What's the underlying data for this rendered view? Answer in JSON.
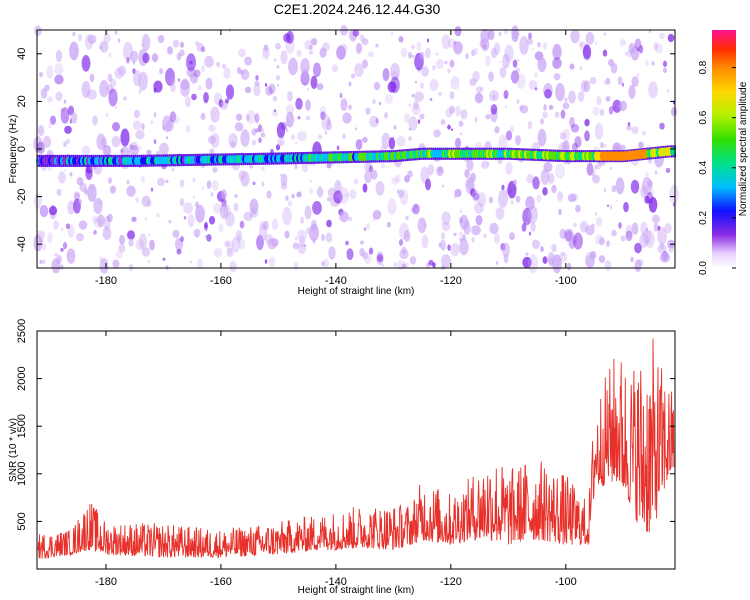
{
  "chart_data": [
    {
      "type": "heatmap",
      "title": "C2E1.2024.246.12.44.G30",
      "xlabel": "Height of straight line (km)",
      "ylabel": "Frequency (Hz)",
      "xlim": [
        -192,
        -81
      ],
      "ylim": [
        -50,
        50
      ],
      "x_ticks": [
        -180,
        -160,
        -140,
        -120,
        -100
      ],
      "y_ticks": [
        -40,
        -20,
        0,
        20,
        40
      ],
      "colorbar": {
        "label": "Normalized spectral amplitude",
        "range": [
          0.0,
          0.95
        ],
        "ticks": [
          0.0,
          0.2,
          0.4,
          0.6,
          0.8
        ]
      },
      "ridge": {
        "description_values": "dominant frequency band near 0 Hz",
        "points": [
          [
            -192,
            -5
          ],
          [
            -175,
            -5
          ],
          [
            -150,
            -4
          ],
          [
            -130,
            -3
          ],
          [
            -125,
            -2
          ],
          [
            -110,
            -2
          ],
          [
            -100,
            -3
          ],
          [
            -90,
            -3
          ],
          [
            -82,
            -1
          ]
        ],
        "peak_amplitude_x": -90
      }
    },
    {
      "type": "line",
      "xlabel": "Height of straight line (km)",
      "ylabel": "SNR (10 * v/v)",
      "xlim": [
        -192,
        -81
      ],
      "ylim": [
        0,
        2500
      ],
      "x_ticks": [
        -180,
        -160,
        -140,
        -120,
        -100
      ],
      "y_ticks": [
        500,
        1000,
        1500,
        2000,
        2500
      ],
      "series": [
        {
          "color": "#e8302a",
          "envelope": [
            [
              -192,
              100,
              380
            ],
            [
              -186,
              150,
              420
            ],
            [
              -183,
              200,
              750
            ],
            [
              -180,
              150,
              500
            ],
            [
              -170,
              120,
              480
            ],
            [
              -160,
              120,
              420
            ],
            [
              -150,
              150,
              500
            ],
            [
              -143,
              200,
              580
            ],
            [
              -140,
              200,
              620
            ],
            [
              -135,
              220,
              680
            ],
            [
              -130,
              200,
              680
            ],
            [
              -127,
              250,
              700
            ],
            [
              -125,
              300,
              950
            ],
            [
              -120,
              250,
              800
            ],
            [
              -117,
              300,
              950
            ],
            [
              -113,
              300,
              1250
            ],
            [
              -110,
              250,
              1050
            ],
            [
              -107,
              300,
              1150
            ],
            [
              -104,
              300,
              1150
            ],
            [
              -100,
              250,
              1000
            ],
            [
              -96,
              250,
              700
            ],
            [
              -95,
              800,
              1800
            ],
            [
              -93,
              900,
              2050
            ],
            [
              -91,
              900,
              2350
            ],
            [
              -89,
              700,
              2150
            ],
            [
              -87,
              400,
              2300
            ],
            [
              -85,
              350,
              2450
            ],
            [
              -83,
              800,
              2100
            ],
            [
              -81.5,
              1000,
              1900
            ]
          ]
        }
      ]
    }
  ]
}
